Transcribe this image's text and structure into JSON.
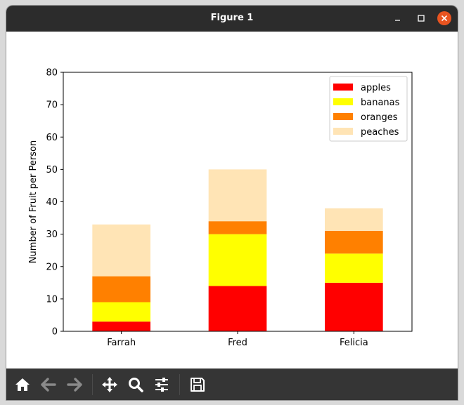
{
  "window": {
    "title": "Figure 1"
  },
  "toolbar": {
    "items": [
      {
        "name": "home-icon",
        "enabled": true
      },
      {
        "name": "back-arrow-icon",
        "enabled": false
      },
      {
        "name": "forward-arrow-icon",
        "enabled": false
      },
      {
        "name": "pan-icon",
        "enabled": true
      },
      {
        "name": "zoom-icon",
        "enabled": true
      },
      {
        "name": "configure-subplots-icon",
        "enabled": true
      },
      {
        "name": "save-icon",
        "enabled": true
      }
    ]
  },
  "chart_data": {
    "type": "bar",
    "stacked": true,
    "categories": [
      "Farrah",
      "Fred",
      "Felicia"
    ],
    "series": [
      {
        "name": "apples",
        "values": [
          3,
          14,
          15
        ],
        "color": "#ff0000"
      },
      {
        "name": "bananas",
        "values": [
          6,
          16,
          9
        ],
        "color": "#ffff00"
      },
      {
        "name": "oranges",
        "values": [
          8,
          4,
          7
        ],
        "color": "#ff8000"
      },
      {
        "name": "peaches",
        "values": [
          16,
          16,
          7
        ],
        "color": "#ffe4b5"
      }
    ],
    "title": "",
    "xlabel": "",
    "ylabel": "Number of Fruit per Person",
    "ylim": [
      0,
      80
    ],
    "yticks": [
      0,
      10,
      20,
      30,
      40,
      50,
      60,
      70,
      80
    ],
    "grid": false,
    "legend_position": "top-right"
  }
}
